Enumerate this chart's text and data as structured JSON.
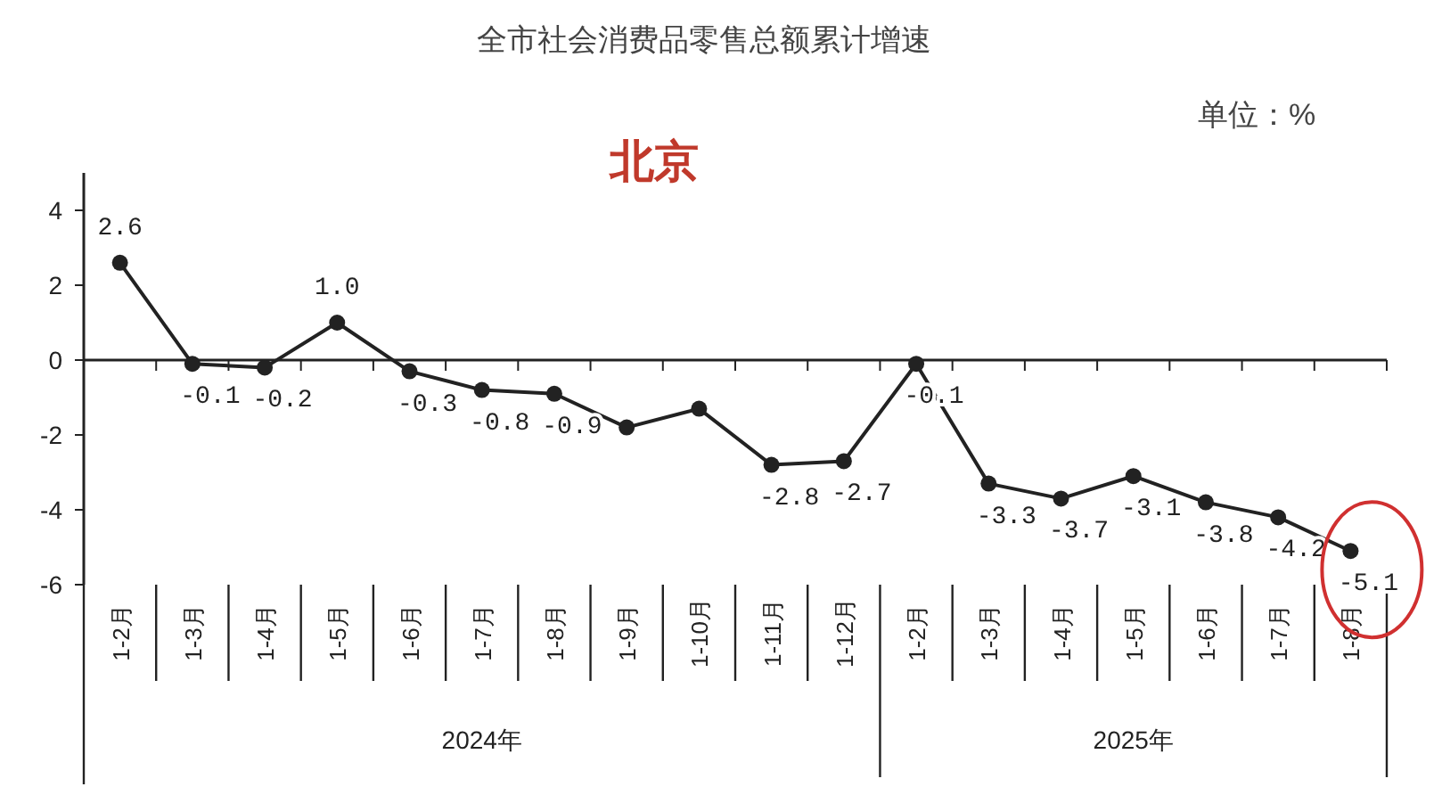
{
  "chart_data": {
    "type": "line",
    "title": "全市社会消费品零售总额累计增速",
    "subtitle": "北京",
    "categories": [
      "1-2月",
      "1-3月",
      "1-4月",
      "1-5月",
      "1-6月",
      "1-7月",
      "1-8月",
      "1-9月",
      "1-10月",
      "1-11月",
      "1-12月",
      "1-2月",
      "1-3月",
      "1-4月",
      "1-5月",
      "1-6月",
      "1-7月",
      "1-8月"
    ],
    "series": [
      {
        "color": "#222222",
        "values": [
          2.6,
          -0.1,
          -0.2,
          1.0,
          -0.3,
          -0.8,
          -0.9,
          -1.8,
          -1.3,
          -2.8,
          -2.7,
          -0.1,
          -3.3,
          -3.7,
          -3.1,
          -3.8,
          -4.2,
          -5.1
        ],
        "value_labels": [
          "2.6",
          "-0.1",
          "-0.2",
          "1.0",
          "-0.3",
          "-0.8",
          "-0.9",
          null,
          null,
          "-2.8",
          "-2.7",
          "-0.1",
          "-3.3",
          "-3.7",
          "-3.1",
          "-3.8",
          "-4.2",
          "-5.1"
        ]
      }
    ],
    "ylim": [
      -6,
      5
    ],
    "yticks": [
      -6,
      -4,
      -2,
      0,
      2,
      4
    ],
    "marker": "circle",
    "annotations": [
      "单位：%",
      "2024年",
      "2025年"
    ]
  }
}
